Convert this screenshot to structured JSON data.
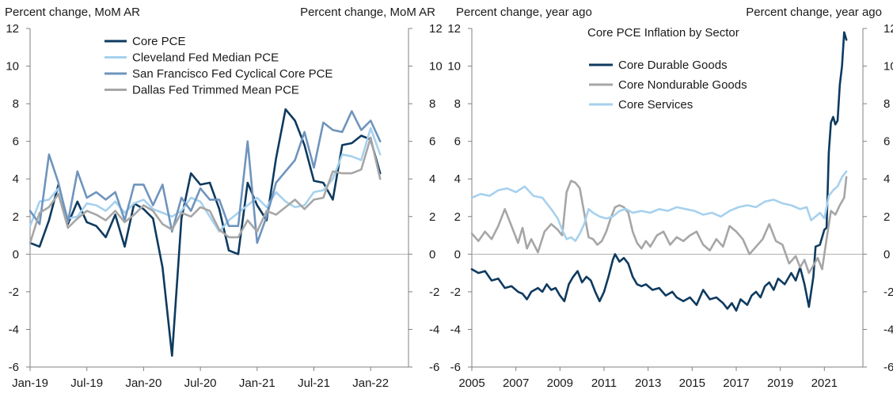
{
  "chart_data": [
    {
      "type": "line",
      "left_axis_label": "Percent change, MoM AR",
      "right_axis_label": "Percent change, MoM AR",
      "ylim": [
        -6,
        12
      ],
      "yticks": [
        -6,
        -4,
        -2,
        0,
        2,
        4,
        6,
        8,
        10,
        12
      ],
      "xlim": [
        0,
        40
      ],
      "xticks": [
        {
          "label": "Jan-19",
          "x": 0
        },
        {
          "label": "Jul-19",
          "x": 6
        },
        {
          "label": "Jan-20",
          "x": 12
        },
        {
          "label": "Jul-20",
          "x": 18
        },
        {
          "label": "Jan-21",
          "x": 24
        },
        {
          "label": "Jul-21",
          "x": 30
        },
        {
          "label": "Jan-22",
          "x": 36
        }
      ],
      "legend_position": "top",
      "series": [
        {
          "name": "Core PCE",
          "color": "#0e3a5f",
          "values": [
            0.6,
            0.4,
            1.8,
            3.7,
            1.6,
            2.8,
            1.7,
            1.5,
            0.9,
            2.1,
            0.4,
            2.7,
            2.4,
            1.9,
            -0.7,
            -5.4,
            1.9,
            4.3,
            3.7,
            3.8,
            2.4,
            0.2,
            0.0,
            3.8,
            2.6,
            1.8,
            5.1,
            7.7,
            7.1,
            5.8,
            3.9,
            3.8,
            2.9,
            5.8,
            5.9,
            6.3,
            6.1,
            4.3
          ]
        },
        {
          "name": "Cleveland Fed Median PCE",
          "color": "#a6d1ee",
          "values": [
            1.5,
            2.8,
            2.9,
            3.5,
            1.9,
            2.0,
            2.7,
            2.6,
            2.3,
            2.8,
            2.2,
            2.7,
            2.9,
            2.4,
            2.2,
            2.0,
            2.3,
            3.0,
            2.8,
            2.0,
            1.2,
            1.8,
            2.2,
            2.6,
            3.0,
            2.5,
            3.3,
            2.8,
            2.5,
            2.6,
            3.3,
            3.4,
            4.0,
            5.3,
            5.2,
            5.0,
            6.7,
            5.3
          ]
        },
        {
          "name": "San Francisco Fed Cyclical Core PCE",
          "color": "#6f94bd",
          "values": [
            2.3,
            1.6,
            5.3,
            3.8,
            1.7,
            4.4,
            3.0,
            3.3,
            2.9,
            3.3,
            1.8,
            3.7,
            3.7,
            2.6,
            3.7,
            1.2,
            3.0,
            2.3,
            3.5,
            2.9,
            2.9,
            1.5,
            1.5,
            6.0,
            0.6,
            2.0,
            3.8,
            4.4,
            5.0,
            6.5,
            4.6,
            7.0,
            6.6,
            6.5,
            7.6,
            6.6,
            7.1,
            6.0
          ]
        },
        {
          "name": "Dallas Fed Trimmed Mean PCE",
          "color": "#a6a6a6",
          "values": [
            0.6,
            2.2,
            2.5,
            3.2,
            1.4,
            1.9,
            2.3,
            2.1,
            1.8,
            2.3,
            1.7,
            2.1,
            2.6,
            2.3,
            1.6,
            1.3,
            2.2,
            2.0,
            2.5,
            2.3,
            1.3,
            0.9,
            0.9,
            1.8,
            1.2,
            2.3,
            2.1,
            2.5,
            2.9,
            2.4,
            2.9,
            3.0,
            4.4,
            4.3,
            4.3,
            4.5,
            6.2,
            4.0
          ]
        }
      ]
    },
    {
      "type": "line",
      "title": "Core PCE Inflation by Sector",
      "left_axis_label": "Percent change, year ago",
      "right_axis_label": "Percent change, year ago",
      "ylim": [
        -6,
        12
      ],
      "yticks": [
        -6,
        -4,
        -2,
        0,
        2,
        4,
        6,
        8,
        10,
        12
      ],
      "xlim": [
        2005,
        2022.75
      ],
      "xticks": [
        {
          "label": "2005",
          "x": 2005
        },
        {
          "label": "2007",
          "x": 2007
        },
        {
          "label": "2009",
          "x": 2009
        },
        {
          "label": "2011",
          "x": 2011
        },
        {
          "label": "2013",
          "x": 2013
        },
        {
          "label": "2015",
          "x": 2015
        },
        {
          "label": "2017",
          "x": 2017
        },
        {
          "label": "2019",
          "x": 2019
        },
        {
          "label": "2021",
          "x": 2021
        }
      ],
      "legend_position": "top-center",
      "series": [
        {
          "name": "Core Durable Goods",
          "color": "#0e3a5f",
          "points": [
            [
              2005.0,
              -0.8
            ],
            [
              2005.3,
              -1.0
            ],
            [
              2005.6,
              -0.9
            ],
            [
              2005.9,
              -1.4
            ],
            [
              2006.2,
              -1.3
            ],
            [
              2006.5,
              -1.8
            ],
            [
              2006.8,
              -1.7
            ],
            [
              2007.1,
              -2.0
            ],
            [
              2007.3,
              -2.1
            ],
            [
              2007.5,
              -2.4
            ],
            [
              2007.7,
              -2.0
            ],
            [
              2008.0,
              -1.8
            ],
            [
              2008.2,
              -2.0
            ],
            [
              2008.4,
              -1.6
            ],
            [
              2008.6,
              -1.9
            ],
            [
              2008.8,
              -1.8
            ],
            [
              2009.0,
              -2.2
            ],
            [
              2009.2,
              -2.5
            ],
            [
              2009.4,
              -1.6
            ],
            [
              2009.6,
              -1.2
            ],
            [
              2009.8,
              -0.9
            ],
            [
              2010.0,
              -1.5
            ],
            [
              2010.2,
              -1.2
            ],
            [
              2010.4,
              -1.4
            ],
            [
              2010.6,
              -2.0
            ],
            [
              2010.8,
              -2.5
            ],
            [
              2011.0,
              -2.0
            ],
            [
              2011.2,
              -1.2
            ],
            [
              2011.4,
              -0.3
            ],
            [
              2011.5,
              0.0
            ],
            [
              2011.7,
              -0.4
            ],
            [
              2011.9,
              -0.2
            ],
            [
              2012.1,
              -0.5
            ],
            [
              2012.3,
              -1.2
            ],
            [
              2012.5,
              -1.6
            ],
            [
              2012.7,
              -1.7
            ],
            [
              2012.9,
              -1.6
            ],
            [
              2013.2,
              -1.9
            ],
            [
              2013.5,
              -1.8
            ],
            [
              2013.8,
              -2.2
            ],
            [
              2014.1,
              -2.0
            ],
            [
              2014.3,
              -2.3
            ],
            [
              2014.6,
              -2.5
            ],
            [
              2014.9,
              -2.3
            ],
            [
              2015.2,
              -2.7
            ],
            [
              2015.5,
              -1.9
            ],
            [
              2015.8,
              -2.4
            ],
            [
              2016.1,
              -2.3
            ],
            [
              2016.4,
              -2.6
            ],
            [
              2016.6,
              -2.9
            ],
            [
              2016.8,
              -2.6
            ],
            [
              2017.0,
              -3.0
            ],
            [
              2017.2,
              -2.4
            ],
            [
              2017.5,
              -2.7
            ],
            [
              2017.7,
              -2.2
            ],
            [
              2017.9,
              -2.0
            ],
            [
              2018.1,
              -2.3
            ],
            [
              2018.3,
              -1.7
            ],
            [
              2018.5,
              -1.5
            ],
            [
              2018.7,
              -1.9
            ],
            [
              2018.9,
              -1.3
            ],
            [
              2019.2,
              -1.6
            ],
            [
              2019.5,
              -1.0
            ],
            [
              2019.7,
              -1.4
            ],
            [
              2019.9,
              -0.7
            ],
            [
              2020.1,
              -1.6
            ],
            [
              2020.3,
              -2.8
            ],
            [
              2020.5,
              -1.2
            ],
            [
              2020.6,
              0.4
            ],
            [
              2020.8,
              0.5
            ],
            [
              2021.0,
              1.3
            ],
            [
              2021.1,
              1.4
            ],
            [
              2021.2,
              5.4
            ],
            [
              2021.3,
              7.0
            ],
            [
              2021.4,
              7.3
            ],
            [
              2021.5,
              6.9
            ],
            [
              2021.6,
              7.1
            ],
            [
              2021.7,
              9.0
            ],
            [
              2021.8,
              10.0
            ],
            [
              2021.9,
              11.8
            ],
            [
              2022.0,
              11.4
            ]
          ]
        },
        {
          "name": "Core Nondurable Goods",
          "color": "#a6a6a6",
          "points": [
            [
              2005.0,
              1.1
            ],
            [
              2005.3,
              0.7
            ],
            [
              2005.6,
              1.2
            ],
            [
              2005.9,
              0.8
            ],
            [
              2006.2,
              1.5
            ],
            [
              2006.5,
              2.4
            ],
            [
              2006.8,
              1.5
            ],
            [
              2007.1,
              0.6
            ],
            [
              2007.3,
              1.4
            ],
            [
              2007.5,
              0.3
            ],
            [
              2007.7,
              0.8
            ],
            [
              2008.0,
              0.1
            ],
            [
              2008.3,
              1.2
            ],
            [
              2008.6,
              1.6
            ],
            [
              2008.9,
              1.3
            ],
            [
              2009.1,
              1.0
            ],
            [
              2009.3,
              3.3
            ],
            [
              2009.5,
              3.9
            ],
            [
              2009.7,
              3.8
            ],
            [
              2009.9,
              3.5
            ],
            [
              2010.1,
              2.2
            ],
            [
              2010.3,
              0.9
            ],
            [
              2010.5,
              0.8
            ],
            [
              2010.7,
              0.5
            ],
            [
              2010.9,
              0.7
            ],
            [
              2011.1,
              1.2
            ],
            [
              2011.3,
              1.9
            ],
            [
              2011.5,
              2.5
            ],
            [
              2011.7,
              2.6
            ],
            [
              2011.9,
              2.5
            ],
            [
              2012.1,
              2.2
            ],
            [
              2012.3,
              1.2
            ],
            [
              2012.5,
              0.6
            ],
            [
              2012.7,
              0.3
            ],
            [
              2012.9,
              0.7
            ],
            [
              2013.1,
              0.4
            ],
            [
              2013.4,
              1.0
            ],
            [
              2013.7,
              1.2
            ],
            [
              2014.0,
              0.5
            ],
            [
              2014.3,
              0.9
            ],
            [
              2014.6,
              0.7
            ],
            [
              2014.9,
              1.0
            ],
            [
              2015.2,
              1.2
            ],
            [
              2015.5,
              0.5
            ],
            [
              2015.8,
              0.2
            ],
            [
              2016.1,
              0.8
            ],
            [
              2016.4,
              0.4
            ],
            [
              2016.7,
              1.5
            ],
            [
              2017.0,
              1.2
            ],
            [
              2017.3,
              0.8
            ],
            [
              2017.6,
              0.0
            ],
            [
              2017.9,
              0.4
            ],
            [
              2018.2,
              0.8
            ],
            [
              2018.5,
              1.6
            ],
            [
              2018.8,
              0.7
            ],
            [
              2019.1,
              0.5
            ],
            [
              2019.4,
              -0.5
            ],
            [
              2019.7,
              -0.1
            ],
            [
              2019.9,
              -0.7
            ],
            [
              2020.1,
              -0.3
            ],
            [
              2020.3,
              -1.0
            ],
            [
              2020.5,
              -0.6
            ],
            [
              2020.7,
              -0.2
            ],
            [
              2020.9,
              -0.8
            ],
            [
              2021.1,
              0.8
            ],
            [
              2021.3,
              2.3
            ],
            [
              2021.5,
              2.1
            ],
            [
              2021.7,
              2.6
            ],
            [
              2021.9,
              3.0
            ],
            [
              2022.0,
              4.1
            ]
          ]
        },
        {
          "name": "Core Services",
          "color": "#a6d1ee",
          "points": [
            [
              2005.0,
              3.0
            ],
            [
              2005.4,
              3.2
            ],
            [
              2005.8,
              3.1
            ],
            [
              2006.2,
              3.4
            ],
            [
              2006.6,
              3.5
            ],
            [
              2007.0,
              3.3
            ],
            [
              2007.4,
              3.6
            ],
            [
              2007.8,
              3.1
            ],
            [
              2008.2,
              3.0
            ],
            [
              2008.6,
              2.4
            ],
            [
              2008.9,
              1.9
            ],
            [
              2009.1,
              1.3
            ],
            [
              2009.3,
              0.8
            ],
            [
              2009.5,
              0.9
            ],
            [
              2009.7,
              0.7
            ],
            [
              2009.9,
              1.1
            ],
            [
              2010.1,
              1.6
            ],
            [
              2010.3,
              2.4
            ],
            [
              2010.5,
              2.2
            ],
            [
              2010.8,
              2.0
            ],
            [
              2011.1,
              1.9
            ],
            [
              2011.4,
              2.0
            ],
            [
              2011.7,
              2.3
            ],
            [
              2012.0,
              2.4
            ],
            [
              2012.3,
              2.2
            ],
            [
              2012.7,
              2.3
            ],
            [
              2013.1,
              2.2
            ],
            [
              2013.5,
              2.4
            ],
            [
              2013.9,
              2.3
            ],
            [
              2014.3,
              2.5
            ],
            [
              2014.7,
              2.4
            ],
            [
              2015.1,
              2.3
            ],
            [
              2015.5,
              2.1
            ],
            [
              2015.9,
              2.2
            ],
            [
              2016.3,
              2.0
            ],
            [
              2016.7,
              2.3
            ],
            [
              2017.1,
              2.5
            ],
            [
              2017.5,
              2.6
            ],
            [
              2017.9,
              2.5
            ],
            [
              2018.3,
              2.8
            ],
            [
              2018.7,
              2.9
            ],
            [
              2019.1,
              2.7
            ],
            [
              2019.5,
              2.6
            ],
            [
              2019.9,
              2.4
            ],
            [
              2020.2,
              2.5
            ],
            [
              2020.4,
              1.8
            ],
            [
              2020.6,
              2.0
            ],
            [
              2020.8,
              2.2
            ],
            [
              2021.0,
              1.9
            ],
            [
              2021.2,
              3.1
            ],
            [
              2021.4,
              3.4
            ],
            [
              2021.6,
              3.6
            ],
            [
              2021.8,
              4.1
            ],
            [
              2022.0,
              4.4
            ]
          ]
        }
      ]
    }
  ]
}
